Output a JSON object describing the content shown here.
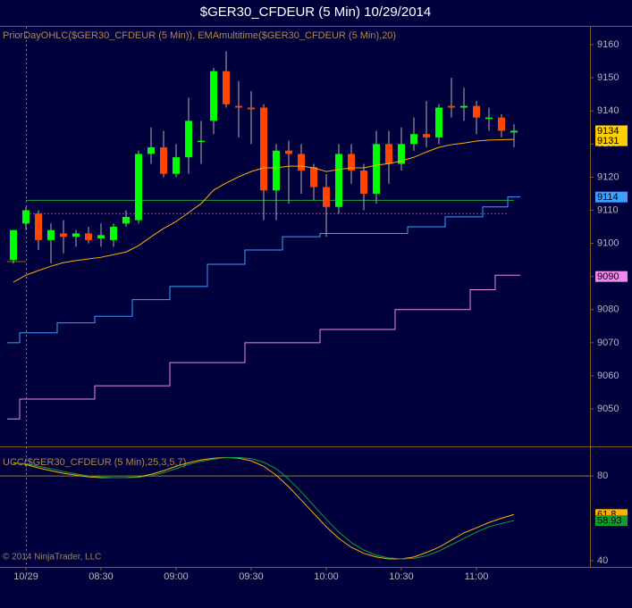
{
  "chart_data": [
    {
      "type": "candlestick",
      "title": "$GER30_CFDEUR (5 Min)  10/29/2014",
      "indicator_label": "PriorDayOHLC($GER30_CFDEUR (5 Min)), EMAmultitime($GER30_CFDEUR (5 Min),20)",
      "categories": [
        null,
        "10/29",
        null,
        null,
        null,
        null,
        null,
        "08:30",
        null,
        null,
        null,
        null,
        null,
        "09:00",
        null,
        null,
        null,
        null,
        null,
        "09:30",
        null,
        null,
        null,
        null,
        null,
        "10:00",
        null,
        null,
        null,
        null,
        null,
        "10:30",
        null,
        null,
        null,
        null,
        null,
        "11:00",
        null,
        null,
        null
      ],
      "open": [
        9095,
        9106,
        9109,
        9101,
        9103,
        9102,
        9103,
        9101.5,
        9101,
        9106,
        9107,
        9127,
        9129,
        9121,
        9126,
        9131,
        9137,
        9152,
        9141.5,
        9141,
        9141,
        9116,
        9128,
        9127,
        9123,
        9117,
        9111,
        9127,
        9122,
        9115,
        9130,
        9124,
        9130,
        9133,
        9132,
        9141.5,
        9141,
        9141.5,
        9138,
        9138,
        9133.5
      ],
      "high": [
        9104,
        9111,
        9110,
        9106,
        9107,
        9104,
        9105,
        9106,
        9106,
        9110,
        9128,
        9135,
        9134,
        9130,
        9144,
        9137,
        9153,
        9158,
        9149,
        9146,
        9142,
        9130,
        9131,
        9130,
        9124,
        9121,
        9130,
        9130,
        9124,
        9134,
        9134,
        9135,
        9138,
        9143,
        9142,
        9150,
        9147,
        9143,
        9141,
        9139,
        9136
      ],
      "low": [
        9094,
        9104,
        9098,
        9094,
        9097,
        9099,
        9100,
        9099,
        9099,
        9105,
        9106,
        9124,
        9120,
        9120,
        9121,
        9124,
        9133,
        9141,
        9132,
        9130,
        9107,
        9107,
        9112,
        9115,
        9113,
        9102,
        9109,
        9118,
        9110,
        9112,
        9118,
        9122,
        9128,
        9129,
        9130,
        9138,
        9137,
        9133,
        9134,
        9132,
        9129
      ],
      "close": [
        9104,
        9110,
        9101,
        9104,
        9102,
        9103,
        9101,
        9102.5,
        9105,
        9108,
        9127,
        9129,
        9121,
        9126,
        9137,
        9131,
        9152,
        9142,
        9141,
        9140.5,
        9116,
        9128,
        9127,
        9122,
        9117,
        9111,
        9127,
        9122,
        9115,
        9130,
        9124,
        9130,
        9133,
        9132,
        9141,
        9141,
        9141.5,
        9138,
        9138,
        9134,
        9134
      ],
      "up_color": "#00ff00",
      "down_color": "#ff4500",
      "wick_color": "#b0b0b0",
      "series": [
        {
          "color": "#ffb000",
          "values": [
            9088.3,
            9090.4,
            9091.8,
            9093.1,
            9094.2,
            9094.8,
            9095.3,
            9095.8,
            9096.6,
            9097.4,
            9099.3,
            9102.0,
            9104.5,
            9106.6,
            9109.3,
            9112.0,
            9116.1,
            9118.2,
            9120.1,
            9121.7,
            9122.8,
            9122.8,
            9123.3,
            9123.3,
            9122.8,
            9121.7,
            9122.3,
            9122.8,
            9122.8,
            9123.6,
            9124.1,
            9124.9,
            9126.0,
            9127.6,
            9129.0,
            9129.8,
            9130.3,
            9130.9,
            9131.2,
            9131.3,
            9131.4
          ]
        },
        {
          "color": "#3ca0ff",
          "step": true,
          "values": [
            9070,
            9073,
            9073,
            9073,
            9076,
            9076,
            9076,
            9078,
            9078,
            9078,
            9083,
            9083,
            9083,
            9087,
            9087,
            9087,
            9093.7,
            9093.7,
            9093.7,
            9098,
            9098,
            9098,
            9102,
            9102,
            9102,
            9103,
            9103,
            9103,
            9103,
            9103,
            9103,
            9103,
            9105,
            9105,
            9105,
            9108,
            9108,
            9108,
            9111,
            9111,
            9114
          ]
        },
        {
          "color": "#ee88ee",
          "step": true,
          "values": [
            9047,
            9053,
            9053,
            9053,
            9053,
            9053,
            9053,
            9057,
            9057,
            9057,
            9057,
            9057,
            9057,
            9064,
            9064,
            9064,
            9064,
            9064,
            9064,
            9070,
            9070,
            9070,
            9070,
            9070,
            9070,
            9074,
            9074,
            9074,
            9074,
            9074,
            9074,
            9080,
            9080,
            9080,
            9080,
            9080,
            9080,
            9086,
            9086,
            9090.4,
            9090.4
          ]
        }
      ],
      "levels": [
        {
          "value": 9113,
          "color": "#20a040",
          "from": 1,
          "to": 40
        },
        {
          "value": 9109,
          "color": "#c04040",
          "dashed": true,
          "from": 1,
          "to": 39.5
        },
        {
          "value": 9094.5,
          "color": "#808000",
          "from": -0.5,
          "to": 1
        }
      ],
      "price_labels": [
        {
          "value": 9134,
          "color": "#ffd000"
        },
        {
          "value": 9131,
          "color": "#ffd000"
        },
        {
          "value": 9114,
          "color": "#3ca0ff"
        },
        {
          "value": 9090,
          "color": "#ee88ee"
        }
      ],
      "ylim": [
        9038.7,
        9165.4
      ],
      "yticks": [
        9050,
        9060,
        9070,
        9080,
        9090,
        9100,
        9110,
        9120,
        9130,
        9140,
        9150,
        9160
      ]
    },
    {
      "type": "line",
      "title": "UCC($GER30_CFDEUR (5 Min),25,3,5,7)",
      "series": [
        {
          "color": "#ffb000",
          "values": [
            86.3,
            85.5,
            83.8,
            82.5,
            81.3,
            80.4,
            79.6,
            79.2,
            79.2,
            79.2,
            79.6,
            80.8,
            82.5,
            84.6,
            86.3,
            87.6,
            88.4,
            88.8,
            88.4,
            87.2,
            84.6,
            80.4,
            74.9,
            68.6,
            62.3,
            56.0,
            50.5,
            46.3,
            43.4,
            41.7,
            40.8,
            40.8,
            41.7,
            43.8,
            46.3,
            49.7,
            53.1,
            55.5,
            58.0,
            60.0,
            61.8
          ]
        },
        {
          "color": "#10a030",
          "values": [
            86.0,
            85.8,
            84.6,
            83.4,
            82.1,
            81.0,
            80.0,
            79.5,
            79.2,
            79.2,
            79.4,
            80.2,
            81.6,
            83.5,
            85.5,
            87.0,
            88.0,
            88.7,
            88.8,
            88.2,
            86.5,
            83.5,
            78.5,
            72.5,
            66.0,
            59.5,
            53.5,
            48.5,
            45.0,
            42.5,
            41.3,
            40.8,
            41.0,
            42.3,
            44.5,
            47.5,
            50.5,
            53.5,
            56.0,
            57.5,
            58.93
          ]
        }
      ],
      "levels": [
        {
          "value": 80,
          "color": "#a08000"
        }
      ],
      "price_labels": [
        {
          "value": 61.8,
          "color": "#ffb000"
        },
        {
          "value": 58.93,
          "color": "#10a030"
        }
      ],
      "ylim": [
        37,
        94
      ],
      "yticks": [
        40,
        80
      ]
    }
  ],
  "copyright": "© 2014 NinjaTrader, LLC"
}
